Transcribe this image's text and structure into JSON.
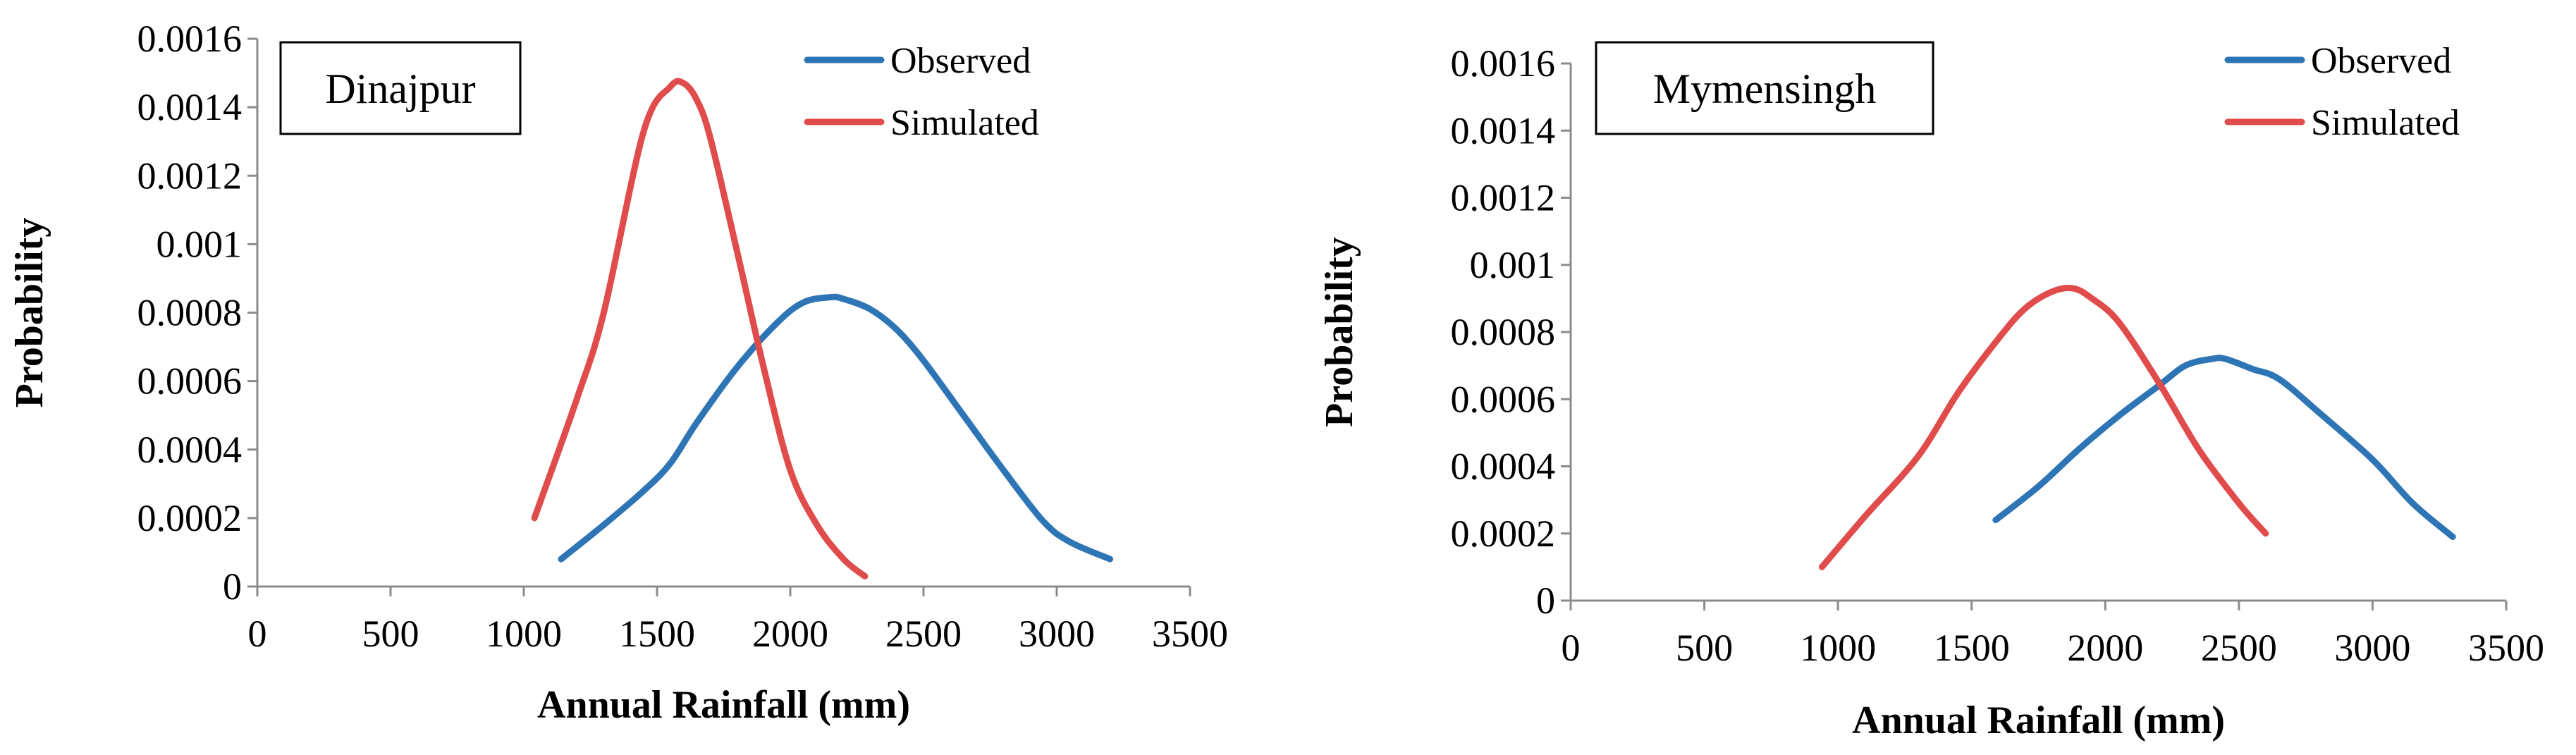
{
  "chart_data": [
    {
      "type": "line",
      "title": "Dinajpur",
      "xlabel": "Annual Rainfall (mm)",
      "ylabel": "Probability",
      "xlim": [
        0,
        3500
      ],
      "ylim": [
        0,
        0.0016
      ],
      "xticks": [
        0,
        500,
        1000,
        1500,
        2000,
        2500,
        3000,
        3500
      ],
      "xtick_labels": [
        "0",
        "500",
        "1000",
        "1500",
        "2000",
        "2500",
        "3000",
        "3500"
      ],
      "yticks": [
        0,
        0.0002,
        0.0004,
        0.0006,
        0.0008,
        0.001,
        0.0012,
        0.0014,
        0.0016
      ],
      "ytick_labels": [
        "0",
        "0.0002",
        "0.0004",
        "0.0006",
        "0.0008",
        "0.001",
        "0.0012",
        "0.0014",
        "0.0016"
      ],
      "legend_position": "top-right",
      "series": [
        {
          "name": "Observed",
          "color": "#2E75B6",
          "x": [
            1140,
            1300,
            1450,
            1550,
            1650,
            1800,
            1950,
            2050,
            2150,
            2200,
            2300,
            2400,
            2500,
            2650,
            2800,
            2950,
            3050,
            3200
          ],
          "y": [
            8e-05,
            0.00018,
            0.00028,
            0.00036,
            0.00048,
            0.00064,
            0.00077,
            0.00083,
            0.000845,
            0.00084,
            0.00081,
            0.00075,
            0.00066,
            0.0005,
            0.00034,
            0.00019,
            0.00013,
            8e-05
          ]
        },
        {
          "name": "Simulated",
          "color": "#E04B4B",
          "x": [
            1040,
            1200,
            1300,
            1450,
            1550,
            1600,
            1650,
            1700,
            1800,
            1900,
            2000,
            2100,
            2200,
            2280
          ],
          "y": [
            0.0002,
            0.00055,
            0.0008,
            0.00133,
            0.00146,
            0.00147,
            0.00142,
            0.00131,
            0.00098,
            0.00064,
            0.00034,
            0.00018,
            8e-05,
            3e-05
          ]
        }
      ]
    },
    {
      "type": "line",
      "title": "Mymensingh",
      "xlabel": "Annual Rainfall (mm)",
      "ylabel": "Probability",
      "xlim": [
        0,
        3500
      ],
      "ylim": [
        0,
        0.0016
      ],
      "xticks": [
        0,
        500,
        1000,
        1500,
        2000,
        2500,
        3000,
        3500
      ],
      "xtick_labels": [
        "0",
        "500",
        "1000",
        "1500",
        "2000",
        "2500",
        "3000",
        "3500"
      ],
      "yticks": [
        0,
        0.0002,
        0.0004,
        0.0006,
        0.0008,
        0.001,
        0.0012,
        0.0014,
        0.0016
      ],
      "ytick_labels": [
        "0",
        "0.0002",
        "0.0004",
        "0.0006",
        "0.0008",
        "0.001",
        "0.0012",
        "0.0014",
        "0.0016"
      ],
      "legend_position": "top-right",
      "series": [
        {
          "name": "Observed",
          "color": "#2E75B6",
          "x": [
            1590,
            1750,
            1900,
            2050,
            2200,
            2300,
            2400,
            2450,
            2550,
            2650,
            2800,
            3000,
            3150,
            3300
          ],
          "y": [
            0.00024,
            0.00034,
            0.00045,
            0.00055,
            0.00064,
            0.0007,
            0.00072,
            0.00072,
            0.00069,
            0.00066,
            0.00056,
            0.00042,
            0.00029,
            0.00019
          ],
          "_": null
        },
        {
          "name": "Simulated",
          "color": "#E04B4B",
          "x": [
            940,
            1100,
            1300,
            1450,
            1600,
            1700,
            1800,
            1880,
            1950,
            2050,
            2200,
            2350,
            2500,
            2600
          ],
          "y": [
            0.0001,
            0.00025,
            0.00043,
            0.00062,
            0.00078,
            0.00087,
            0.00092,
            0.00093,
            0.0009,
            0.00083,
            0.00065,
            0.00045,
            0.00029,
            0.0002
          ]
        }
      ]
    }
  ]
}
